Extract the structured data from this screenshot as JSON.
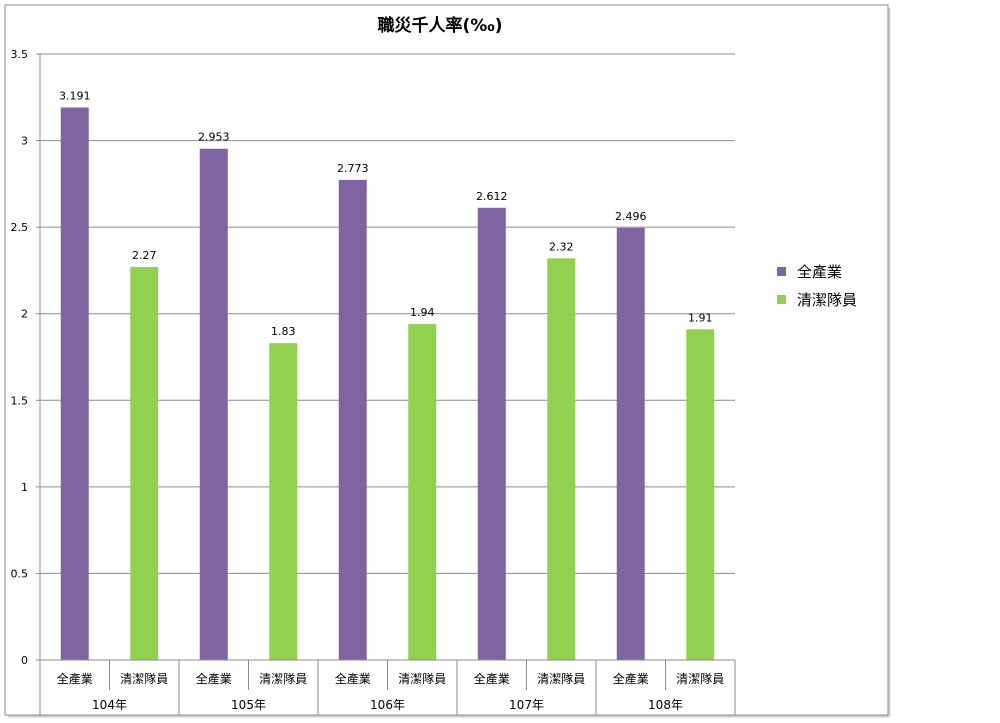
{
  "chart_data": {
    "type": "bar",
    "title": "職災千人率(‰)",
    "xlabel": "",
    "ylabel": "",
    "ylim": [
      0,
      3.5
    ],
    "yticks": [
      0,
      0.5,
      1,
      1.5,
      2,
      2.5,
      3,
      3.5
    ],
    "ytick_labels": [
      "0",
      "0.5",
      "1",
      "1.5",
      "2",
      "2.5",
      "3",
      "3.5"
    ],
    "grid": true,
    "legend_position": "right",
    "groups": [
      "104年",
      "105年",
      "106年",
      "107年",
      "108年"
    ],
    "series": [
      {
        "name": "全產業",
        "color": "#8064a2",
        "values": [
          3.191,
          2.953,
          2.773,
          2.612,
          2.496
        ],
        "labels": [
          "3.191",
          "2.953",
          "2.773",
          "2.612",
          "2.496"
        ]
      },
      {
        "name": "清潔隊員",
        "color": "#92d050",
        "values": [
          2.27,
          1.83,
          1.94,
          2.32,
          1.91
        ],
        "labels": [
          "2.27",
          "1.83",
          "1.94",
          "2.32",
          "1.91"
        ]
      }
    ]
  }
}
